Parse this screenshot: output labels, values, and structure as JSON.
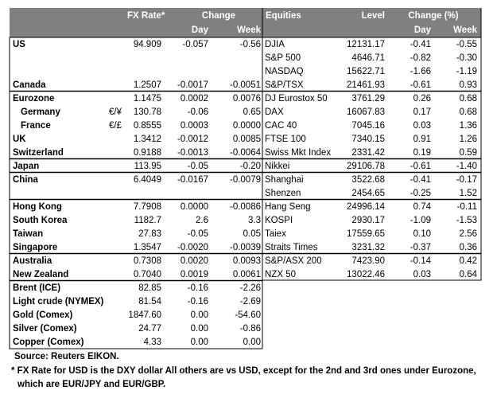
{
  "header": {
    "fx_rate": "FX Rate*",
    "change": "Change",
    "day": "Day",
    "week": "Week",
    "equities": "Equities",
    "level": "Level",
    "change_pct": "Change (%)",
    "eq_day": "Day",
    "eq_week": "Week"
  },
  "table": {
    "rows": [
      [
        "US",
        null,
        "94.909",
        "-0.057",
        "-0.56",
        "DJIA",
        "12131.17",
        "-0.41",
        "-0.55"
      ],
      [
        null,
        null,
        null,
        null,
        null,
        "S&P 500",
        "4646.71",
        "-0.82",
        "-0.30"
      ],
      [
        null,
        null,
        null,
        null,
        null,
        "NASDAQ",
        "15622.71",
        "-1.66",
        "-1.19"
      ],
      [
        "Canada",
        null,
        "1.2507",
        "-0.0017",
        "-0.0051",
        "S&P/TSX",
        "21461.93",
        "-0.61",
        "0.93"
      ],
      [
        "Eurozone",
        null,
        "1.1475",
        "0.0002",
        "0.0076",
        "DJ Eurostox 50",
        "3761.29",
        "0.26",
        "0.68"
      ],
      [
        "Germany",
        "€/¥",
        "130.78",
        "-0.06",
        "0.65",
        "DAX",
        "16067.83",
        "0.17",
        "0.68"
      ],
      [
        "France",
        "€/£",
        "0.8555",
        "0.0003",
        "0.0000",
        "CAC 40",
        "7045.16",
        "0.03",
        "1.36"
      ],
      [
        "UK",
        null,
        "1.3412",
        "-0.0012",
        "0.0085",
        "FTSE 100",
        "7340.15",
        "0.91",
        "1.26"
      ],
      [
        "Switzerland",
        null,
        "0.9188",
        "-0.0013",
        "-0.0064",
        "Swiss Mkt Index",
        "2331.42",
        "0.19",
        "0.59"
      ],
      [
        "Japan",
        null,
        "113.95",
        "-0.05",
        "-0.20",
        "Nikkei",
        "29106.78",
        "-0.61",
        "-1.40"
      ],
      [
        "China",
        null,
        "6.4049",
        "-0.0167",
        "-0.0079",
        "Shanghai",
        "3522.68",
        "-0.41",
        "-0.17"
      ],
      [
        null,
        null,
        null,
        null,
        null,
        "Shenzen",
        "2454.65",
        "-0.25",
        "1.52"
      ],
      [
        "Hong Kong",
        null,
        "7.7908",
        "0.0000",
        "-0.0086",
        "Hang Seng",
        "24996.14",
        "0.74",
        "-0.11"
      ],
      [
        "South Korea",
        null,
        "1182.7",
        "2.6",
        "3.3",
        "KOSPI",
        "2930.17",
        "-1.09",
        "-1.53"
      ],
      [
        "Taiwan",
        null,
        "27.83",
        "-0.05",
        "0.05",
        "Taiex",
        "17559.65",
        "0.10",
        "2.56"
      ],
      [
        "Singapore",
        null,
        "1.3547",
        "-0.0020",
        "-0.0039",
        "Straits Times",
        "3231.32",
        "-0.37",
        "0.36"
      ],
      [
        "Australia",
        null,
        "0.7308",
        "0.0020",
        "0.0093",
        "S&P/ASX  200",
        "7423.90",
        "-0.14",
        "0.42"
      ],
      [
        "New Zealand",
        null,
        "0.7040",
        "0.0019",
        "0.0061",
        "NZX 50",
        "13022.46",
        "0.03",
        "0.64"
      ],
      [
        "Brent (ICE)",
        null,
        "82.85",
        "-0.16",
        "-2.26",
        null,
        null,
        null,
        null
      ],
      [
        "Light crude (NYMEX)",
        null,
        "81.54",
        "-0.16",
        "-2.69",
        null,
        null,
        null,
        null
      ],
      [
        "Gold (Comex)",
        null,
        "1847.60",
        "0.00",
        "-54.60",
        null,
        null,
        null,
        null
      ],
      [
        "Silver (Comex)",
        null,
        "24.77",
        "0.00",
        "-0.86",
        null,
        null,
        null,
        null
      ],
      [
        "Copper (Comex)",
        null,
        "4.33",
        "0.00",
        "0.00",
        null,
        null,
        null,
        null
      ]
    ]
  },
  "footer": {
    "source": "Source:  Reuters EIKON.",
    "note_1": "* FX Rate for USD is the DXY dollar  All others are vs USD, except for the 2nd and 3rd ones under Eurozone,",
    "note_2": "which are EUR/JPY and EUR/GBP."
  }
}
